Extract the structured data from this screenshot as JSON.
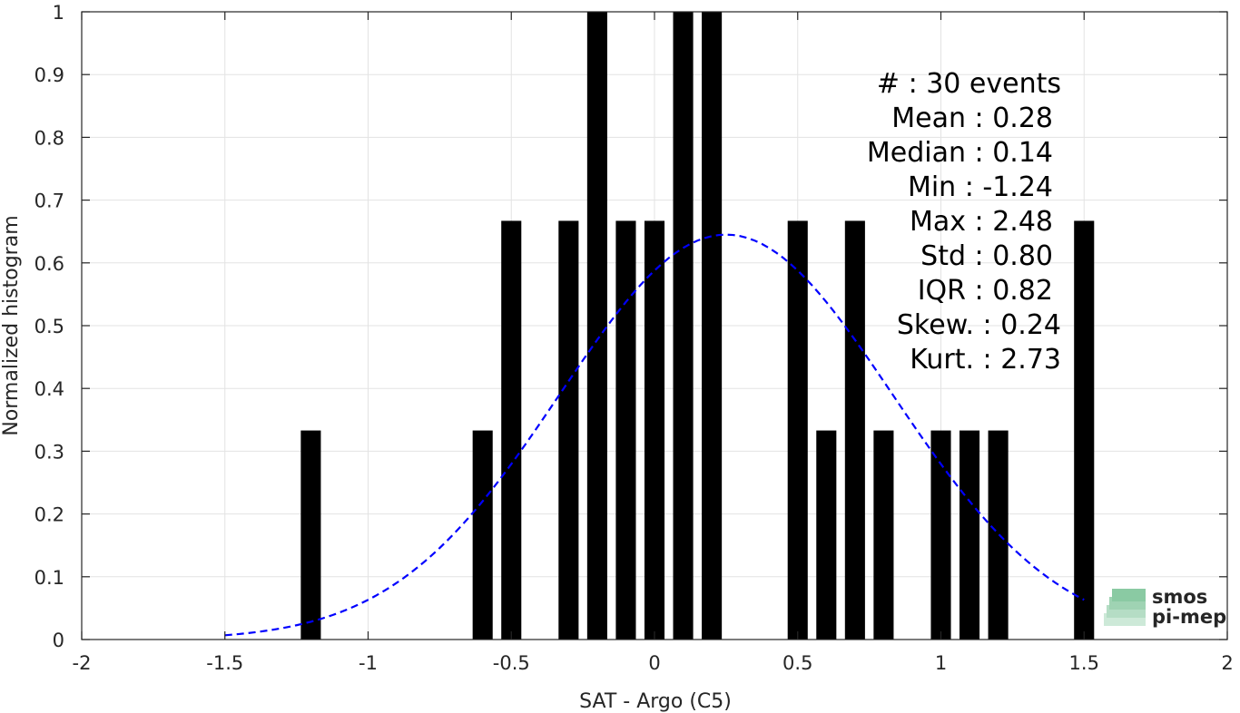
{
  "chart_data": {
    "type": "bar",
    "xlabel": "SAT - Argo (C5)",
    "ylabel": "Normalized histogram",
    "xlim": [
      -2,
      2
    ],
    "ylim": [
      0,
      1
    ],
    "x_ticks": [
      "-2",
      "-1.5",
      "-1",
      "-0.5",
      "0",
      "0.5",
      "1",
      "1.5",
      "2"
    ],
    "y_ticks": [
      "0",
      "0.1",
      "0.2",
      "0.3",
      "0.4",
      "0.5",
      "0.6",
      "0.7",
      "0.8",
      "0.9",
      "1"
    ],
    "grid": true,
    "bar_color": "#000000",
    "bar_width": 0.07,
    "bars": [
      {
        "x": -1.2,
        "y": 0.333
      },
      {
        "x": -0.6,
        "y": 0.333
      },
      {
        "x": -0.5,
        "y": 0.667
      },
      {
        "x": -0.3,
        "y": 0.667
      },
      {
        "x": -0.2,
        "y": 1.0
      },
      {
        "x": -0.1,
        "y": 0.667
      },
      {
        "x": 0.0,
        "y": 0.667
      },
      {
        "x": 0.1,
        "y": 1.0
      },
      {
        "x": 0.2,
        "y": 1.0
      },
      {
        "x": 0.5,
        "y": 0.667
      },
      {
        "x": 0.6,
        "y": 0.333
      },
      {
        "x": 0.7,
        "y": 0.667
      },
      {
        "x": 0.8,
        "y": 0.333
      },
      {
        "x": 1.0,
        "y": 0.333
      },
      {
        "x": 1.1,
        "y": 0.333
      },
      {
        "x": 1.2,
        "y": 0.333
      },
      {
        "x": 1.5,
        "y": 0.667
      }
    ],
    "fit_curve": {
      "style": "dashed",
      "color": "#0000ff",
      "mean": 0.25,
      "std": 0.58,
      "peak": 0.645,
      "x_range": [
        -1.5,
        1.5
      ]
    },
    "stats_lines": [
      "#  : 30 events",
      "Mean : 0.28",
      "Median : 0.14",
      "Min : -1.24",
      "Max : 2.48",
      "Std : 0.80",
      "IQR : 0.82",
      "Skew. : 0.24",
      "Kurt. : 2.73"
    ]
  },
  "logo": {
    "line1": "smos",
    "line2": "pi-mep",
    "color": "#7dc49b"
  }
}
